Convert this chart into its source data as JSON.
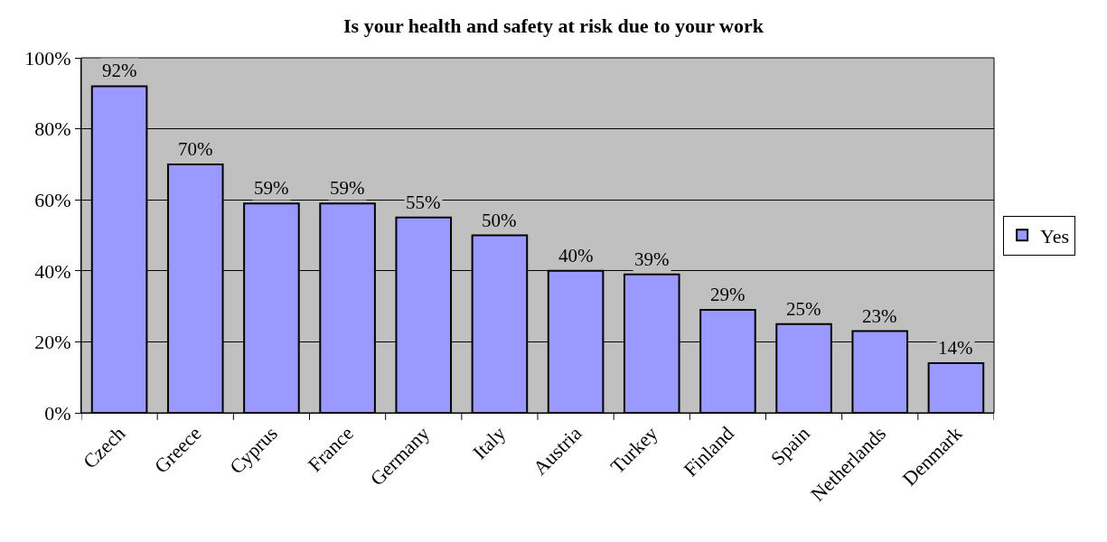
{
  "chart_data": {
    "type": "bar",
    "title": "Is your health and safety at risk due to your work",
    "categories": [
      "Czech",
      "Greece",
      "Cyprus",
      "France",
      "Germany",
      "Italy",
      "Austria",
      "Turkey",
      "Finland",
      "Spain",
      "Netherlands",
      "Denmark"
    ],
    "series": [
      {
        "name": "Yes",
        "color": "#9999ff",
        "values": [
          92,
          70,
          59,
          59,
          55,
          50,
          40,
          39,
          29,
          25,
          23,
          14
        ]
      }
    ],
    "ylim": [
      0,
      100
    ],
    "yticks": [
      {
        "value": 0,
        "label": "0%"
      },
      {
        "value": 20,
        "label": "20%"
      },
      {
        "value": 40,
        "label": "40%"
      },
      {
        "value": 60,
        "label": "60%"
      },
      {
        "value": 80,
        "label": "80%"
      },
      {
        "value": 100,
        "label": "100%"
      }
    ],
    "value_labels": [
      "92%",
      "70%",
      "59%",
      "59%",
      "55%",
      "50%",
      "40%",
      "39%",
      "29%",
      "25%",
      "23%",
      "14%"
    ],
    "grid": "y",
    "legend": "right"
  }
}
